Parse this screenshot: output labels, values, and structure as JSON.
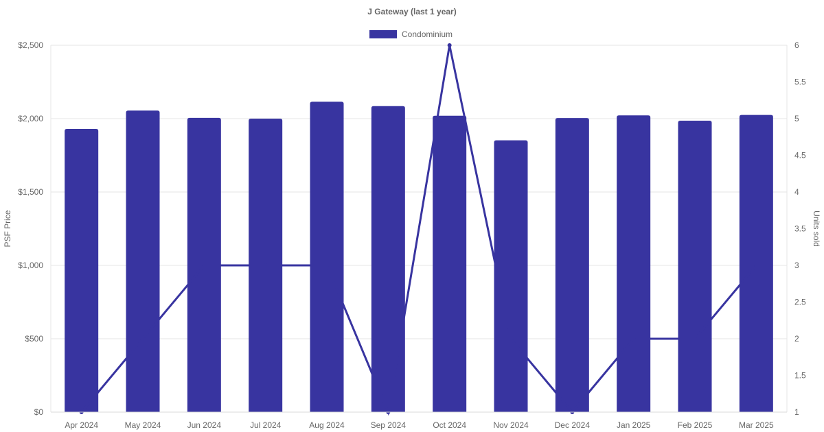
{
  "chart_data": {
    "type": "bar",
    "title": "J Gateway (last 1 year)",
    "categories": [
      "Apr 2024",
      "May 2024",
      "Jun 2024",
      "Jul 2024",
      "Aug 2024",
      "Sep 2024",
      "Oct 2024",
      "Nov 2024",
      "Dec 2024",
      "Jan 2025",
      "Feb 2025",
      "Mar 2025"
    ],
    "series": [
      {
        "name": "Condominium",
        "type": "bar",
        "axis": "left",
        "color": "#3834a0",
        "values": [
          1930,
          2055,
          2005,
          2000,
          2115,
          2085,
          2020,
          1852,
          2004,
          2022,
          1986,
          2025
        ]
      },
      {
        "type": "line",
        "axis": "right",
        "color": "#3834a0",
        "values": [
          1,
          2,
          3,
          3,
          3,
          1,
          6,
          2,
          1,
          2,
          2,
          3
        ]
      }
    ],
    "y_left": {
      "label": "PSF Price",
      "ylim": [
        0,
        2500
      ],
      "ticks": [
        0,
        500,
        1000,
        1500,
        2000,
        2500
      ],
      "tick_labels": [
        "$0",
        "$500",
        "$1,000",
        "$1,500",
        "$2,000",
        "$2,500"
      ]
    },
    "y_right": {
      "label": "Units sold",
      "ylim": [
        1,
        6
      ],
      "ticks": [
        1,
        1.5,
        2,
        2.5,
        3,
        3.5,
        4,
        4.5,
        5,
        5.5,
        6
      ],
      "tick_labels": [
        "1",
        "1.5",
        "2",
        "2.5",
        "3",
        "3.5",
        "4",
        "4.5",
        "5",
        "5.5",
        "6"
      ]
    },
    "legend": {
      "position": "top",
      "entries": [
        "Condominium"
      ]
    },
    "grid": true
  }
}
